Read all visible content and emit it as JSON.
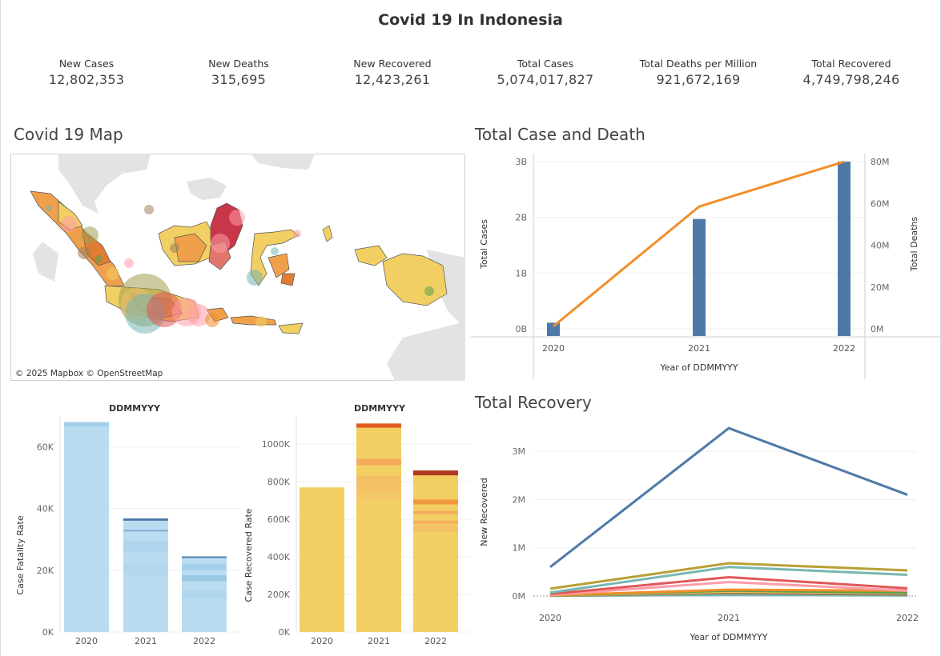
{
  "dashboard": {
    "title": "Covid 19 In Indonesia"
  },
  "kpis": [
    {
      "label": "New Cases",
      "value": "12,802,353"
    },
    {
      "label": "New Deaths",
      "value": "315,695"
    },
    {
      "label": "New Recovered",
      "value": "12,423,261"
    },
    {
      "label": "Total Cases",
      "value": "5,074,017,827"
    },
    {
      "label": "Total Deaths per Million",
      "value": "921,672,169"
    },
    {
      "label": "Total Recovered",
      "value": "4,749,798,246"
    }
  ],
  "map": {
    "title": "Covid 19 Map",
    "attribution": "© 2025 Mapbox © OpenStreetMap"
  },
  "recovery_title": "Total Recovery",
  "case_death_title": "Total Case and Death",
  "chart_data": [
    {
      "id": "total-case-death",
      "type": "bar",
      "categories": [
        "2020",
        "2021",
        "2022"
      ],
      "xlabel": "Year of DDMMYYY",
      "ylabel": "Total Cases",
      "ylabel2": "Total Deaths",
      "ylim": [
        0,
        3000000000
      ],
      "ylim2": [
        0,
        80000000
      ],
      "yticks": [
        {
          "v": 0,
          "t": "0B"
        },
        {
          "v": 1000000000,
          "t": "1B"
        },
        {
          "v": 2000000000,
          "t": "2B"
        },
        {
          "v": 3000000000,
          "t": "3B"
        }
      ],
      "y2ticks": [
        {
          "v": 0,
          "t": "0M"
        },
        {
          "v": 20000000,
          "t": "20M"
        },
        {
          "v": 40000000,
          "t": "40M"
        },
        {
          "v": 60000000,
          "t": "60M"
        },
        {
          "v": 80000000,
          "t": "80M"
        }
      ],
      "series": [
        {
          "name": "Total Cases",
          "kind": "bar",
          "axis": "left",
          "color": "#4e79a7",
          "values": [
            110000000,
            1970000000,
            3000000000
          ]
        },
        {
          "name": "Total Deaths",
          "kind": "line",
          "axis": "right",
          "color": "#f28e2b",
          "values": [
            1200000,
            58500000,
            80000000
          ]
        }
      ]
    },
    {
      "id": "case-fatality",
      "type": "bar",
      "title": "DDMMYYY",
      "categories": [
        "2020",
        "2021",
        "2022"
      ],
      "ylabel": "Case Fatality Rate",
      "ylim": [
        0,
        70000
      ],
      "yticks": [
        {
          "v": 0,
          "t": "0K"
        },
        {
          "v": 20000,
          "t": "20K"
        },
        {
          "v": 40000,
          "t": "40K"
        },
        {
          "v": 60000,
          "t": "60K"
        }
      ],
      "values": [
        68000,
        36800,
        24500
      ],
      "colors": {
        "fill": "#b9dcf1",
        "accent": "#4e79a7"
      }
    },
    {
      "id": "case-recovered",
      "type": "bar",
      "title": "DDMMYYY",
      "categories": [
        "2020",
        "2021",
        "2022"
      ],
      "ylabel": "Case Recovered Rate",
      "ylim": [
        0,
        1150000
      ],
      "yticks": [
        {
          "v": 0,
          "t": "0K"
        },
        {
          "v": 200000,
          "t": "200K"
        },
        {
          "v": 400000,
          "t": "400K"
        },
        {
          "v": 600000,
          "t": "600K"
        },
        {
          "v": 800000,
          "t": "800K"
        },
        {
          "v": 1000000,
          "t": "1000K"
        }
      ],
      "values": [
        770000,
        1110000,
        860000
      ],
      "colors": {
        "fill": "#f2cf63",
        "accent": "#e05a22"
      }
    },
    {
      "id": "total-recovery",
      "type": "line",
      "categories": [
        "2020",
        "2021",
        "2022"
      ],
      "xlabel": "Year of DDMMYYY",
      "ylabel": "New Recovered",
      "ylim": [
        -150000,
        3650000
      ],
      "yticks": [
        {
          "v": 0,
          "t": "0M"
        },
        {
          "v": 1000000,
          "t": "1M"
        },
        {
          "v": 2000000,
          "t": "2M"
        },
        {
          "v": 3000000,
          "t": "3M"
        }
      ],
      "series": [
        {
          "color": "#4e79a7",
          "values": [
            600000,
            3480000,
            2100000
          ]
        },
        {
          "color": "#b8a035",
          "values": [
            150000,
            680000,
            530000
          ]
        },
        {
          "color": "#76b7b2",
          "values": [
            70000,
            600000,
            440000
          ]
        },
        {
          "color": "#e15759",
          "values": [
            40000,
            390000,
            160000
          ]
        },
        {
          "color": "#ff9da7",
          "values": [
            20000,
            290000,
            110000
          ]
        },
        {
          "color": "#f28e2b",
          "values": [
            15000,
            130000,
            110000
          ]
        },
        {
          "color": "#59a14f",
          "values": [
            10000,
            110000,
            70000
          ]
        },
        {
          "color": "#edc948",
          "values": [
            8000,
            90000,
            60000
          ]
        },
        {
          "color": "#9c755f",
          "values": [
            6000,
            60000,
            30000
          ]
        },
        {
          "color": "#76b7b2",
          "values": [
            3000,
            20000,
            10000
          ]
        }
      ]
    }
  ]
}
